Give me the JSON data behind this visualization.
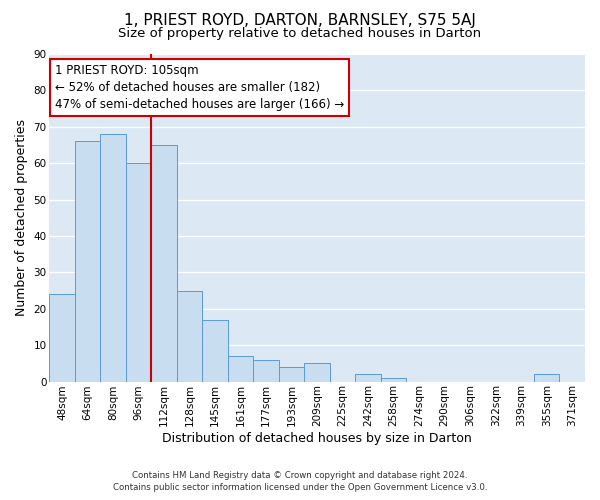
{
  "title": "1, PRIEST ROYD, DARTON, BARNSLEY, S75 5AJ",
  "subtitle": "Size of property relative to detached houses in Darton",
  "xlabel": "Distribution of detached houses by size in Darton",
  "ylabel": "Number of detached properties",
  "footer_line1": "Contains HM Land Registry data © Crown copyright and database right 2024.",
  "footer_line2": "Contains public sector information licensed under the Open Government Licence v3.0.",
  "bin_labels": [
    "48sqm",
    "64sqm",
    "80sqm",
    "96sqm",
    "112sqm",
    "128sqm",
    "145sqm",
    "161sqm",
    "177sqm",
    "193sqm",
    "209sqm",
    "225sqm",
    "242sqm",
    "258sqm",
    "274sqm",
    "290sqm",
    "306sqm",
    "322sqm",
    "339sqm",
    "355sqm",
    "371sqm"
  ],
  "bar_values": [
    24,
    66,
    68,
    60,
    65,
    25,
    17,
    7,
    6,
    4,
    5,
    0,
    2,
    1,
    0,
    0,
    0,
    0,
    0,
    2,
    0
  ],
  "bar_color": "#c9ddf0",
  "bar_edge_color": "#5a9bd5",
  "background_color": "#dce9f5",
  "ylim": [
    0,
    90
  ],
  "yticks": [
    0,
    10,
    20,
    30,
    40,
    50,
    60,
    70,
    80,
    90
  ],
  "vline_x_index": 3.5,
  "vline_color": "#cc0000",
  "annotation_text": "1 PRIEST ROYD: 105sqm\n← 52% of detached houses are smaller (182)\n47% of semi-detached houses are larger (166) →",
  "annotation_box_color": "#ffffff",
  "annotation_box_edge": "#cc0000",
  "title_fontsize": 11,
  "subtitle_fontsize": 9.5,
  "axis_label_fontsize": 9,
  "tick_fontsize": 7.5,
  "annotation_fontsize": 8.5
}
